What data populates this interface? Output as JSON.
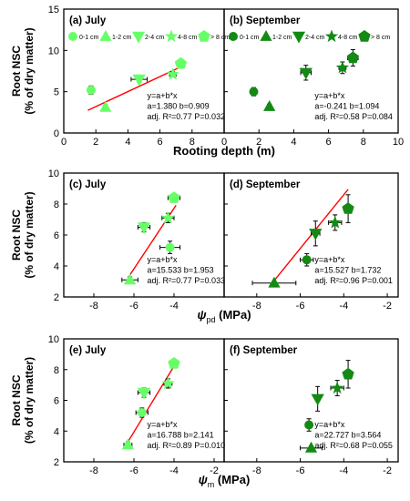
{
  "colors": {
    "july": "#66ff66",
    "september": "#138a13",
    "fit": "#ff0000",
    "axis": "#000000"
  },
  "rows": [
    {
      "ylabel_line1": "Root NSC",
      "ylabel_line2": "(% of dry matter)"
    },
    {
      "ylabel_line1": "Root NSC",
      "ylabel_line2": "(% of dry matter)"
    },
    {
      "ylabel_line1": "Root NSC",
      "ylabel_line2": "(% of dry matter)"
    }
  ],
  "xlabels": [
    {
      "main": "Rooting depth (m)",
      "sub": "",
      "unit": ""
    },
    {
      "main": "ψ",
      "sub": "pd",
      "unit": " (MPa)"
    },
    {
      "main": "ψ",
      "sub": "m",
      "unit": " (MPa)"
    }
  ],
  "legend_entries": [
    "0-1 cm",
    "1-2 cm",
    "2-4 cm",
    "4-8 cm",
    "> 8 cm"
  ],
  "chart_data": [
    {
      "type": "scatter",
      "title": "(a) July",
      "season": "july",
      "xlim": [
        0,
        10
      ],
      "ylim": [
        0,
        15
      ],
      "xticks": [
        0,
        2,
        4,
        6,
        8
      ],
      "yticks": [
        0,
        5,
        10,
        15
      ],
      "points": [
        {
          "class": "0-1 cm",
          "x": 1.7,
          "y": 5.2,
          "xerr": 0.1,
          "yerr": 0.5
        },
        {
          "class": "1-2 cm",
          "x": 2.6,
          "y": 3.1,
          "xerr": 0.1,
          "yerr": 0.3
        },
        {
          "class": "2-4 cm",
          "x": 4.7,
          "y": 6.5,
          "xerr": 0.5,
          "yerr": 0.3
        },
        {
          "class": "4-8 cm",
          "x": 6.8,
          "y": 7.1,
          "xerr": 0.2,
          "yerr": 0.3
        },
        {
          "class": "> 8 cm",
          "x": 7.3,
          "y": 8.4,
          "xerr": 0.2,
          "yerr": 0.3
        }
      ],
      "fit": {
        "a": 1.38,
        "b": 0.909,
        "x": [
          1.5,
          7.3
        ]
      },
      "annotation": [
        "y=a+b*x",
        "a=1.380 b=0.909",
        "adj. R²=0.77  P=0.032"
      ]
    },
    {
      "type": "scatter",
      "title": "(b) September",
      "season": "september",
      "xlim": [
        0,
        10
      ],
      "ylim": [
        0,
        15
      ],
      "xticks": [
        0,
        2,
        4,
        6,
        8,
        10
      ],
      "yticks": [
        0,
        5,
        10,
        15
      ],
      "points": [
        {
          "class": "0-1 cm",
          "x": 1.7,
          "y": 5.0,
          "xerr": 0.1,
          "yerr": 0.5
        },
        {
          "class": "1-2 cm",
          "x": 2.6,
          "y": 3.2,
          "xerr": 0.1,
          "yerr": 0.3
        },
        {
          "class": "2-4 cm",
          "x": 4.7,
          "y": 7.3,
          "xerr": 0.3,
          "yerr": 0.9
        },
        {
          "class": "4-8 cm",
          "x": 6.8,
          "y": 7.9,
          "xerr": 0.2,
          "yerr": 0.7
        },
        {
          "class": "> 8 cm",
          "x": 7.4,
          "y": 9.1,
          "xerr": 0.3,
          "yerr": 1.0
        }
      ],
      "fit": null,
      "annotation": [
        "y=a+b*x",
        "a=-0.241 b=1.094",
        "adj. R²=0.58  P=0.084"
      ]
    },
    {
      "type": "scatter",
      "title": "(c) July",
      "season": "july",
      "xlim": [
        -9.5,
        -1.5
      ],
      "ylim": [
        2,
        10
      ],
      "xticks": [
        -8,
        -6,
        -4
      ],
      "yticks": [
        2,
        4,
        6,
        8,
        10
      ],
      "points": [
        {
          "class": "0-1 cm",
          "x": -4.2,
          "y": 5.2,
          "xerr": 0.5,
          "yerr": 0.4
        },
        {
          "class": "1-2 cm",
          "x": -6.2,
          "y": 3.1,
          "xerr": 0.4,
          "yerr": 0.2
        },
        {
          "class": "2-4 cm",
          "x": -5.5,
          "y": 6.5,
          "xerr": 0.3,
          "yerr": 0.3
        },
        {
          "class": "4-8 cm",
          "x": -4.3,
          "y": 7.1,
          "xerr": 0.3,
          "yerr": 0.3
        },
        {
          "class": "> 8 cm",
          "x": -4.0,
          "y": 8.4,
          "xerr": 0.3,
          "yerr": 0.2
        }
      ],
      "fit": {
        "a": 15.533,
        "b": 1.953,
        "x": [
          -6.3,
          -3.9
        ]
      },
      "annotation": [
        "y=a+b*x",
        "a=15.533 b=1.953",
        "adj. R²=0.77  P=0.033"
      ]
    },
    {
      "type": "scatter",
      "title": "(d) September",
      "season": "september",
      "xlim": [
        -9.5,
        -1.5
      ],
      "ylim": [
        2,
        10
      ],
      "xticks": [
        -8,
        -6,
        -4,
        -2
      ],
      "yticks": [
        2,
        4,
        6,
        8,
        10
      ],
      "points": [
        {
          "class": "0-1 cm",
          "x": -5.7,
          "y": 4.4,
          "xerr": 0.3,
          "yerr": 0.4
        },
        {
          "class": "1-2 cm",
          "x": -7.2,
          "y": 2.9,
          "xerr": 1.0,
          "yerr": 0.1
        },
        {
          "class": "2-4 cm",
          "x": -5.3,
          "y": 6.1,
          "xerr": 0.2,
          "yerr": 0.8
        },
        {
          "class": "4-8 cm",
          "x": -4.4,
          "y": 6.8,
          "xerr": 0.3,
          "yerr": 0.5
        },
        {
          "class": "> 8 cm",
          "x": -3.8,
          "y": 7.7,
          "xerr": 0.2,
          "yerr": 0.9
        }
      ],
      "fit": {
        "a": 15.527,
        "b": 1.732,
        "x": [
          -7.2,
          -3.8
        ]
      },
      "annotation": [
        "y=a+b*x",
        "a=15.527 b=1.732",
        "adj. R²=0.96  P=0.001"
      ]
    },
    {
      "type": "scatter",
      "title": "(e) July",
      "season": "july",
      "xlim": [
        -9.5,
        -1.5
      ],
      "ylim": [
        2,
        10
      ],
      "xticks": [
        -8,
        -6,
        -4,
        -2
      ],
      "yticks": [
        2,
        4,
        6,
        8,
        10
      ],
      "points": [
        {
          "class": "0-1 cm",
          "x": -5.6,
          "y": 5.2,
          "xerr": 0.3,
          "yerr": 0.3
        },
        {
          "class": "1-2 cm",
          "x": -6.3,
          "y": 3.1,
          "xerr": 0.2,
          "yerr": 0.2
        },
        {
          "class": "2-4 cm",
          "x": -5.5,
          "y": 6.5,
          "xerr": 0.3,
          "yerr": 0.3
        },
        {
          "class": "4-8 cm",
          "x": -4.3,
          "y": 7.1,
          "xerr": 0.2,
          "yerr": 0.3
        },
        {
          "class": "> 8 cm",
          "x": -4.0,
          "y": 8.4,
          "xerr": 0.2,
          "yerr": 0.2
        }
      ],
      "fit": {
        "a": 16.788,
        "b": 2.141,
        "x": [
          -6.4,
          -3.9
        ]
      },
      "annotation": [
        "y=a+b*x",
        "a=16.788 b=2.141",
        "adj. R²=0.89  P=0.010"
      ]
    },
    {
      "type": "scatter",
      "title": "(f) September",
      "season": "september",
      "xlim": [
        -9.5,
        -1.5
      ],
      "ylim": [
        2,
        10
      ],
      "xticks": [
        -8,
        -6,
        -4,
        -2
      ],
      "yticks": [
        2,
        4,
        6,
        8,
        10
      ],
      "points": [
        {
          "class": "0-1 cm",
          "x": -5.6,
          "y": 4.4,
          "xerr": 0.1,
          "yerr": 0.4
        },
        {
          "class": "1-2 cm",
          "x": -5.5,
          "y": 2.9,
          "xerr": 0.5,
          "yerr": 0.1
        },
        {
          "class": "2-4 cm",
          "x": -5.2,
          "y": 6.1,
          "xerr": 0.1,
          "yerr": 0.8
        },
        {
          "class": "4-8 cm",
          "x": -4.3,
          "y": 6.8,
          "xerr": 0.3,
          "yerr": 0.5
        },
        {
          "class": "> 8 cm",
          "x": -3.8,
          "y": 7.7,
          "xerr": 0.2,
          "yerr": 0.9
        }
      ],
      "fit": null,
      "annotation": [
        "y=a+b*x",
        "a=22.727 b=3.564",
        "adj. R²=0.68  P=0.055"
      ]
    }
  ]
}
